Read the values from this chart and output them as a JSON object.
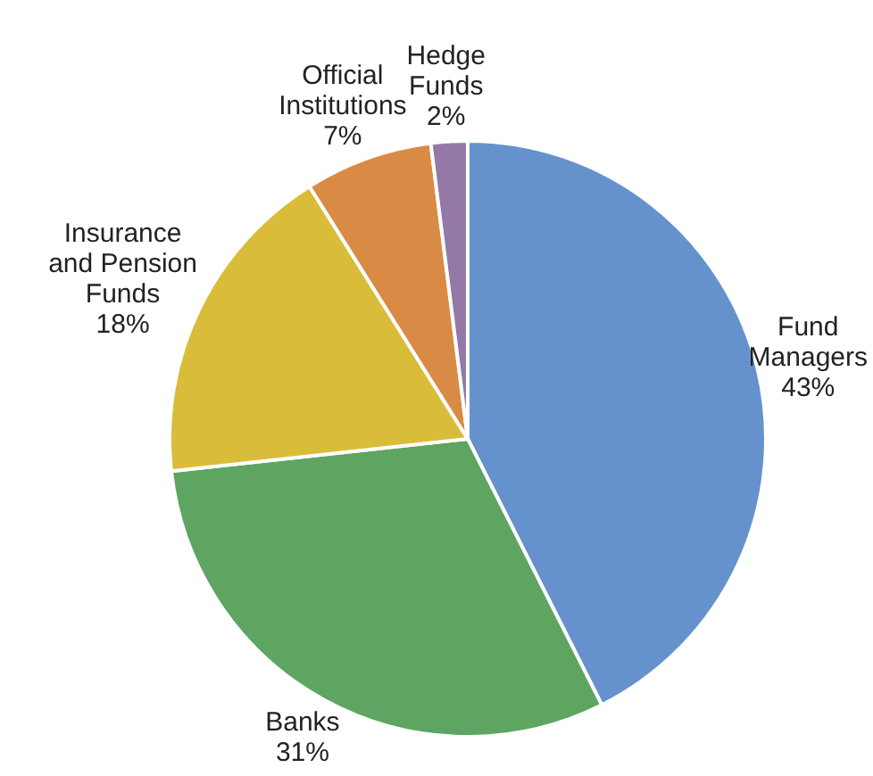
{
  "chart_data": {
    "type": "pie",
    "categories": [
      "Fund Managers",
      "Banks",
      "Insurance and Pension Funds",
      "Official Institutions",
      "Hedge Funds"
    ],
    "values": [
      43,
      31,
      18,
      7,
      2
    ],
    "colors": [
      "#6592cd",
      "#5ea562",
      "#d9bd3a",
      "#d98b45",
      "#9479a8"
    ],
    "value_labels": [
      "43%",
      "31%",
      "18%",
      "7%",
      "2%"
    ]
  }
}
